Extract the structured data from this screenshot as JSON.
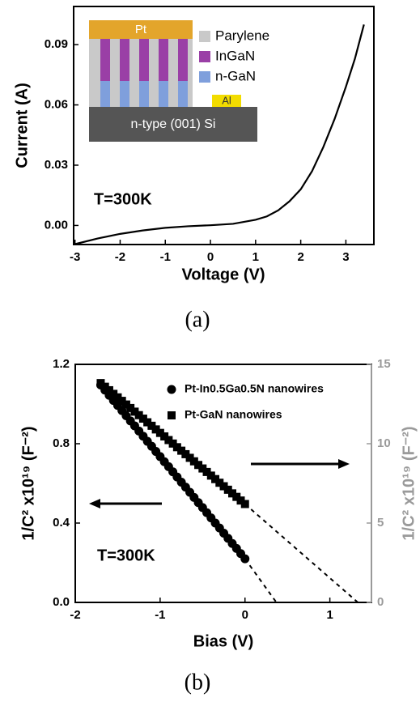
{
  "chart_data": [
    {
      "type": "line",
      "xlabel": "Voltage (V)",
      "ylabel": "Current (A)",
      "annotation": "T=300K",
      "caption": "(a)",
      "x": [
        -3,
        -2.5,
        -2,
        -1.5,
        -1,
        -0.5,
        0,
        0.5,
        1,
        1.25,
        1.5,
        1.75,
        2,
        2.25,
        2.5,
        2.75,
        3,
        3.2,
        3.4
      ],
      "values": [
        -0.0093,
        -0.0065,
        -0.0042,
        -0.0025,
        -0.0012,
        -0.0004,
        0.0001,
        0.0008,
        0.0028,
        0.0045,
        0.0075,
        0.012,
        0.018,
        0.027,
        0.039,
        0.053,
        0.069,
        0.083,
        0.1
      ],
      "color": "#000000",
      "xlim": [
        -3.03,
        3.62
      ],
      "ylim": [
        -0.0095,
        0.109
      ],
      "xticks": [
        -3,
        -2,
        -1,
        0,
        1,
        2,
        3
      ],
      "yticks": [
        {
          "value": 0,
          "label": "0.00"
        },
        {
          "value": 0.03,
          "label": "0.03"
        },
        {
          "value": 0.06,
          "label": "0.06"
        },
        {
          "value": 0.09,
          "label": "0.09"
        }
      ],
      "inset": {
        "top_label": "Pt",
        "substrate_label": "n-type (001) Si",
        "contact_label": "Al",
        "legend": [
          {
            "name": "Parylene",
            "color": "#c9c9c9"
          },
          {
            "name": "InGaN",
            "color": "#9a3fa6"
          },
          {
            "name": "n-GaN",
            "color": "#7f9fdc"
          }
        ]
      }
    },
    {
      "type": "scatter",
      "xlabel": "Bias (V)",
      "ylabel": "1/C² x10¹⁹ (F⁻²)",
      "y2label": "1/C² x10¹⁹ (F⁻²)",
      "annotation": "T=300K",
      "caption": "(b)",
      "x": [
        -1.7,
        -1.65,
        -1.6,
        -1.55,
        -1.5,
        -1.45,
        -1.4,
        -1.35,
        -1.3,
        -1.25,
        -1.2,
        -1.15,
        -1.1,
        -1.05,
        -1,
        -0.95,
        -0.9,
        -0.85,
        -0.8,
        -0.75,
        -0.7,
        -0.65,
        -0.6,
        -0.55,
        -0.5,
        -0.45,
        -0.4,
        -0.35,
        -0.3,
        -0.25,
        -0.2,
        -0.15,
        -0.1,
        -0.05,
        0
      ],
      "series": [
        {
          "name": "Pt-In0.5Ga0.5N nanowires",
          "color": "#000000",
          "marker": "circle",
          "values": [
            1.096,
            1.07,
            1.044,
            1.018,
            0.993,
            0.967,
            0.941,
            0.915,
            0.89,
            0.864,
            0.838,
            0.812,
            0.787,
            0.761,
            0.735,
            0.709,
            0.684,
            0.658,
            0.632,
            0.606,
            0.581,
            0.555,
            0.529,
            0.503,
            0.478,
            0.452,
            0.426,
            0.4,
            0.375,
            0.349,
            0.323,
            0.297,
            0.272,
            0.246,
            0.22
          ]
        },
        {
          "name": "Pt-GaN nanowires",
          "color": "#000000",
          "marker": "square",
          "axis": "y2",
          "values": [
            13.82,
            13.59,
            13.37,
            13.14,
            12.92,
            12.7,
            12.47,
            12.25,
            12.02,
            11.8,
            11.58,
            11.35,
            11.13,
            10.9,
            10.68,
            10.46,
            10.23,
            10.01,
            9.78,
            9.56,
            9.34,
            9.11,
            8.89,
            8.66,
            8.44,
            8.22,
            7.99,
            7.77,
            7.54,
            7.32,
            7.1,
            6.87,
            6.65,
            6.42,
            6.2
          ]
        }
      ],
      "fit_lines": [
        {
          "x": [
            0,
            0.37
          ],
          "values": [
            0.22,
            0
          ]
        },
        {
          "x": [
            0,
            1.33
          ],
          "values": [
            6.2,
            0
          ],
          "axis": "y2"
        }
      ],
      "xlim": [
        -2,
        1.49
      ],
      "ylim": [
        0,
        1.2
      ],
      "y2lim": [
        0,
        15
      ],
      "xticks": [
        -2,
        -1,
        0,
        1
      ],
      "yticks": [
        {
          "value": 0,
          "label": "0.0"
        },
        0.4,
        0.8,
        1.2
      ],
      "y2ticks": [
        0,
        5,
        10,
        15
      ],
      "y2_color": "#9a9a9a"
    }
  ]
}
